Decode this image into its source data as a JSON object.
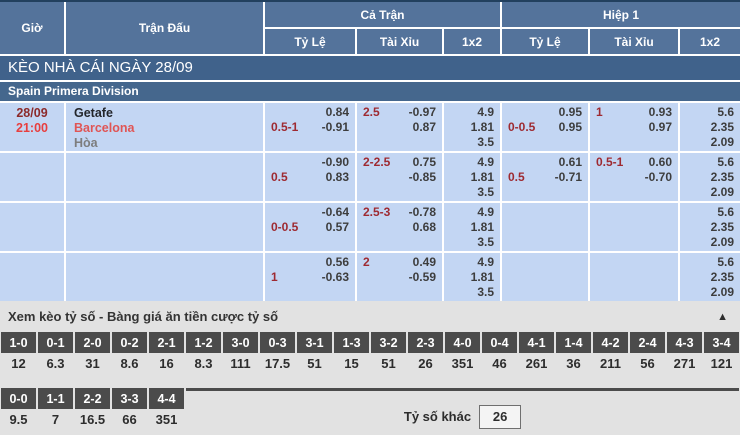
{
  "banner": "KÈO NHÀ CÁI NGÀY 28/09",
  "league": "Spain Primera Division",
  "table_header": {
    "time": "Giờ",
    "match": "Trận Đấu",
    "groups": [
      {
        "label": "Cả Trận",
        "cols": [
          "Tỷ Lệ",
          "Tài Xỉu",
          "1x2"
        ]
      },
      {
        "label": "Hiệp 1",
        "cols": [
          "Tỷ Lệ",
          "Tài Xỉu",
          "1x2"
        ]
      }
    ]
  },
  "match": {
    "date": "28/09",
    "time": "21:00",
    "home": "Getafe",
    "away": "Barcelona",
    "draw_label": "Hòa"
  },
  "odds_rows": [
    {
      "cells": [
        [
          {
            "r": "0.84"
          },
          {
            "l": "0.5-1",
            "r": "-0.91"
          }
        ],
        [
          {
            "l": "2.5",
            "r": "-0.97"
          },
          {
            "r": "0.87"
          }
        ],
        [
          {
            "r": "4.9"
          },
          {
            "r": "1.81"
          },
          {
            "r": "3.5"
          }
        ],
        [
          {
            "r": "0.95"
          },
          {
            "l": "0-0.5",
            "r": "0.95"
          }
        ],
        [
          {
            "l": "1",
            "r": "0.93"
          },
          {
            "r": "0.97"
          }
        ],
        [
          {
            "r": "5.6"
          },
          {
            "r": "2.35"
          },
          {
            "r": "2.09"
          }
        ]
      ]
    },
    {
      "cells": [
        [
          {
            "r": "-0.90"
          },
          {
            "l": "0.5",
            "r": "0.83"
          }
        ],
        [
          {
            "l": "2-2.5",
            "r": "0.75"
          },
          {
            "r": "-0.85"
          }
        ],
        [
          {
            "r": "4.9"
          },
          {
            "r": "1.81"
          },
          {
            "r": "3.5"
          }
        ],
        [
          {
            "r": "0.61"
          },
          {
            "l": "0.5",
            "r": "-0.71"
          }
        ],
        [
          {
            "l": "0.5-1",
            "r": "0.60"
          },
          {
            "r": "-0.70"
          }
        ],
        [
          {
            "r": "5.6"
          },
          {
            "r": "2.35"
          },
          {
            "r": "2.09"
          }
        ]
      ]
    },
    {
      "cells": [
        [
          {
            "r": "-0.64"
          },
          {
            "l": "0-0.5",
            "r": "0.57"
          }
        ],
        [
          {
            "l": "2.5-3",
            "r": "-0.78"
          },
          {
            "r": "0.68"
          }
        ],
        [
          {
            "r": "4.9"
          },
          {
            "r": "1.81"
          },
          {
            "r": "3.5"
          }
        ],
        [],
        [],
        [
          {
            "r": "5.6"
          },
          {
            "r": "2.35"
          },
          {
            "r": "2.09"
          }
        ]
      ]
    },
    {
      "cells": [
        [
          {
            "r": "0.56"
          },
          {
            "l": "1",
            "r": "-0.63"
          }
        ],
        [
          {
            "l": "2",
            "r": "0.49"
          },
          {
            "r": "-0.59"
          }
        ],
        [
          {
            "r": "4.9"
          },
          {
            "r": "1.81"
          },
          {
            "r": "3.5"
          }
        ],
        [],
        [],
        [
          {
            "r": "5.6"
          },
          {
            "r": "2.35"
          },
          {
            "r": "2.09"
          }
        ]
      ]
    }
  ],
  "score_section": {
    "title": "Xem kèo tỷ số - Bàng giá ăn tiền cược tỷ số",
    "collapse_icon": "▲",
    "row1": [
      {
        "score": "1-0",
        "odds": "12"
      },
      {
        "score": "0-1",
        "odds": "6.3"
      },
      {
        "score": "2-0",
        "odds": "31"
      },
      {
        "score": "0-2",
        "odds": "8.6"
      },
      {
        "score": "2-1",
        "odds": "16"
      },
      {
        "score": "1-2",
        "odds": "8.3"
      },
      {
        "score": "3-0",
        "odds": "111"
      },
      {
        "score": "0-3",
        "odds": "17.5"
      },
      {
        "score": "3-1",
        "odds": "51"
      },
      {
        "score": "1-3",
        "odds": "15"
      },
      {
        "score": "3-2",
        "odds": "51"
      },
      {
        "score": "2-3",
        "odds": "26"
      },
      {
        "score": "4-0",
        "odds": "351"
      },
      {
        "score": "0-4",
        "odds": "46"
      },
      {
        "score": "4-1",
        "odds": "261"
      },
      {
        "score": "1-4",
        "odds": "36"
      },
      {
        "score": "4-2",
        "odds": "211"
      },
      {
        "score": "2-4",
        "odds": "56"
      },
      {
        "score": "4-3",
        "odds": "271"
      },
      {
        "score": "3-4",
        "odds": "121"
      }
    ],
    "row2": [
      {
        "score": "0-0",
        "odds": "9.5"
      },
      {
        "score": "1-1",
        "odds": "7"
      },
      {
        "score": "2-2",
        "odds": "16.5"
      },
      {
        "score": "3-3",
        "odds": "66"
      },
      {
        "score": "4-4",
        "odds": "351"
      }
    ],
    "other_label": "Tỷ số khác",
    "other_odds": "26"
  },
  "colors": {
    "header_bg": "#54739b",
    "banner_bg": "#40628b",
    "league_bg": "#45678d",
    "row_bg": "#c3d6f3",
    "handicap_red": "#9e2a31",
    "away_team_red": "#e05555",
    "time_red": "#e83e3e",
    "score_chip_bg": "#4b4b4b",
    "section_bg": "#e2e2e2"
  }
}
